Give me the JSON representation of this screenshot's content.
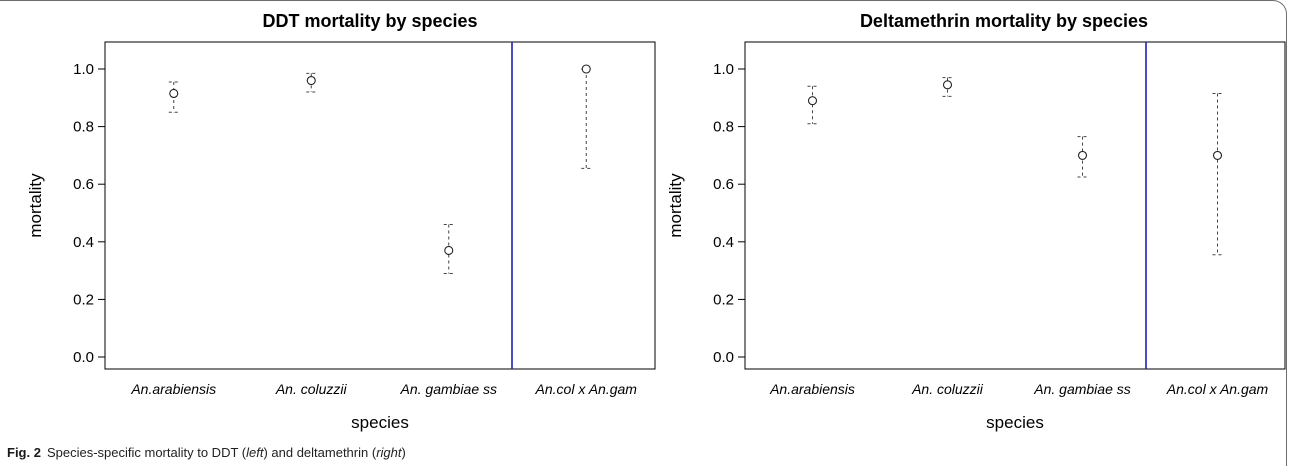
{
  "caption": {
    "label": "Fig. 2",
    "text_a": "Species-specific mortality to DDT (",
    "em_a": "left",
    "text_b": ") and deltamethrin (",
    "em_b": "right",
    "text_c": ")"
  },
  "chart_data": [
    {
      "type": "scatter",
      "title": "DDT mortality by species",
      "xlabel": "species",
      "ylabel": "mortality",
      "ylim": [
        0,
        1
      ],
      "yticks": [
        "0.0",
        "0.2",
        "0.4",
        "0.6",
        "0.8",
        "1.0"
      ],
      "categories": [
        "An.arabiensis",
        "An. coluzzii",
        "An. gambiae ss",
        "An.col x An.gam"
      ],
      "values": [
        0.915,
        0.96,
        0.37,
        1.0
      ],
      "lower": [
        0.85,
        0.92,
        0.29,
        0.655
      ],
      "upper": [
        0.955,
        0.985,
        0.46,
        1.0
      ],
      "separator_color": "#1f1fb4",
      "grid": false
    },
    {
      "type": "scatter",
      "title": "Deltamethrin mortality by species",
      "xlabel": "species",
      "ylabel": "mortality",
      "ylim": [
        0,
        1
      ],
      "yticks": [
        "0.0",
        "0.2",
        "0.4",
        "0.6",
        "0.8",
        "1.0"
      ],
      "categories": [
        "An.arabiensis",
        "An. coluzzii",
        "An. gambiae ss",
        "An.col x An.gam"
      ],
      "values": [
        0.89,
        0.945,
        0.7,
        0.7
      ],
      "lower": [
        0.81,
        0.905,
        0.625,
        0.355
      ],
      "upper": [
        0.94,
        0.97,
        0.765,
        0.915
      ],
      "separator_color": "#1f1fb4",
      "grid": false
    }
  ]
}
